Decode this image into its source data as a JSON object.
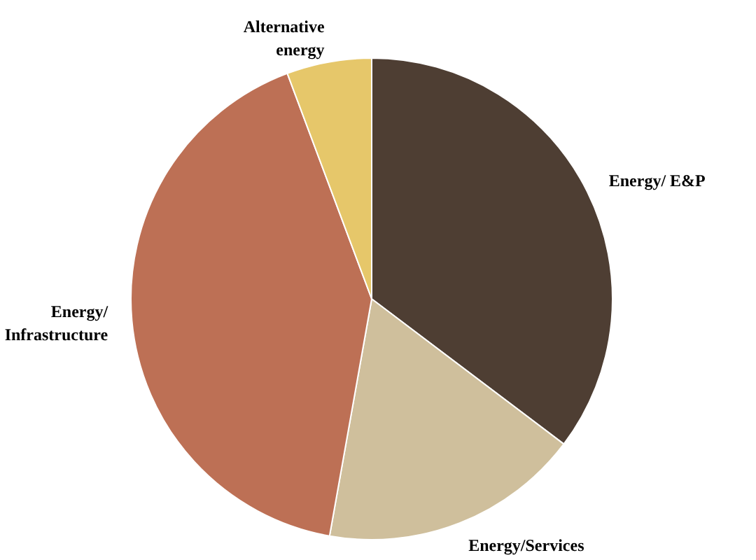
{
  "chart_data": {
    "type": "pie",
    "categories": [
      "Energy/ E&P",
      "Energy/Services",
      "Energy/ Infrastructure",
      "Alternative energy"
    ],
    "values": [
      35.3,
      17.5,
      41.5,
      5.7
    ],
    "colors": [
      "#4e3e33",
      "#cfbf9c",
      "#bd7055",
      "#e6c76a"
    ]
  }
}
